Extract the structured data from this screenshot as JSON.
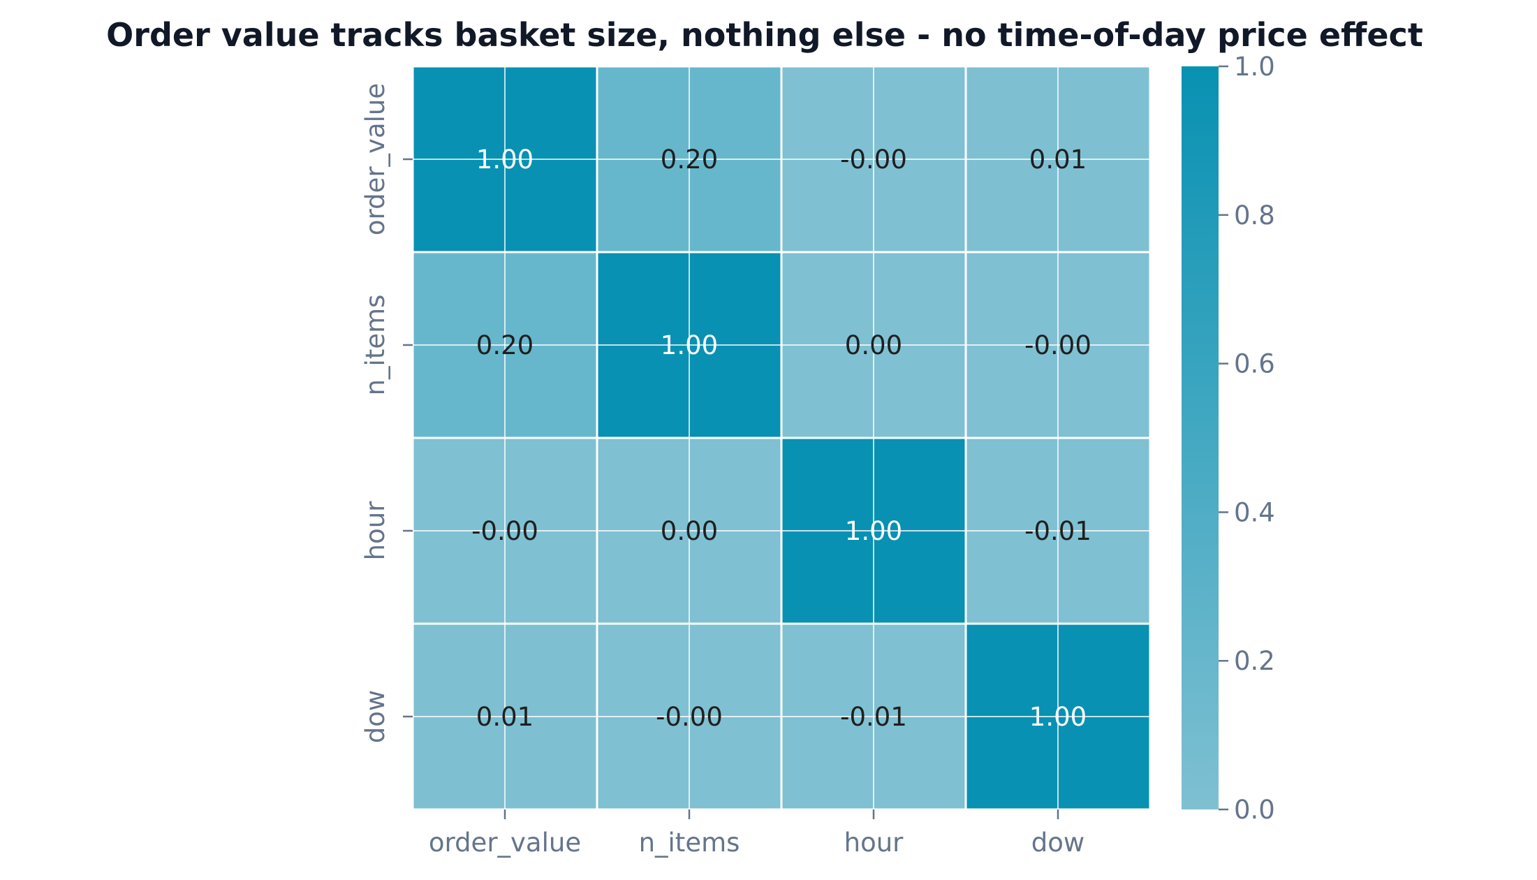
{
  "chart_data": {
    "type": "heatmap",
    "title": "Order value tracks basket size, nothing else - no time-of-day price effect",
    "x_categories": [
      "order_value",
      "n_items",
      "hour",
      "dow"
    ],
    "y_categories": [
      "order_value",
      "n_items",
      "hour",
      "dow"
    ],
    "values": [
      [
        1.0,
        0.2,
        -0.0,
        0.01
      ],
      [
        0.2,
        1.0,
        0.0,
        -0.0
      ],
      [
        -0.0,
        0.0,
        1.0,
        -0.01
      ],
      [
        0.01,
        -0.0,
        -0.01,
        1.0
      ]
    ],
    "cell_labels": [
      [
        "1.00",
        "0.20",
        "-0.00",
        "0.01"
      ],
      [
        "0.20",
        "1.00",
        "0.00",
        "-0.00"
      ],
      [
        "-0.00",
        "0.00",
        "1.00",
        "-0.01"
      ],
      [
        "0.01",
        "-0.00",
        "-0.01",
        "1.00"
      ]
    ],
    "colorbar": {
      "range": [
        0.0,
        1.0
      ],
      "ticks": [
        0.0,
        0.2,
        0.4,
        0.6,
        0.8,
        1.0
      ],
      "tick_labels": [
        "0.0",
        "0.2",
        "0.4",
        "0.6",
        "0.8",
        "1.0"
      ],
      "color_low": "#7fc0d2",
      "color_high": "#0891b2"
    },
    "grid": true,
    "colors": {
      "title": "#111827",
      "tick_label": "#64748b",
      "annotation_dark": "#1f1f1f",
      "annotation_light": "#ffffff",
      "cell_border": "#ffffff"
    }
  }
}
